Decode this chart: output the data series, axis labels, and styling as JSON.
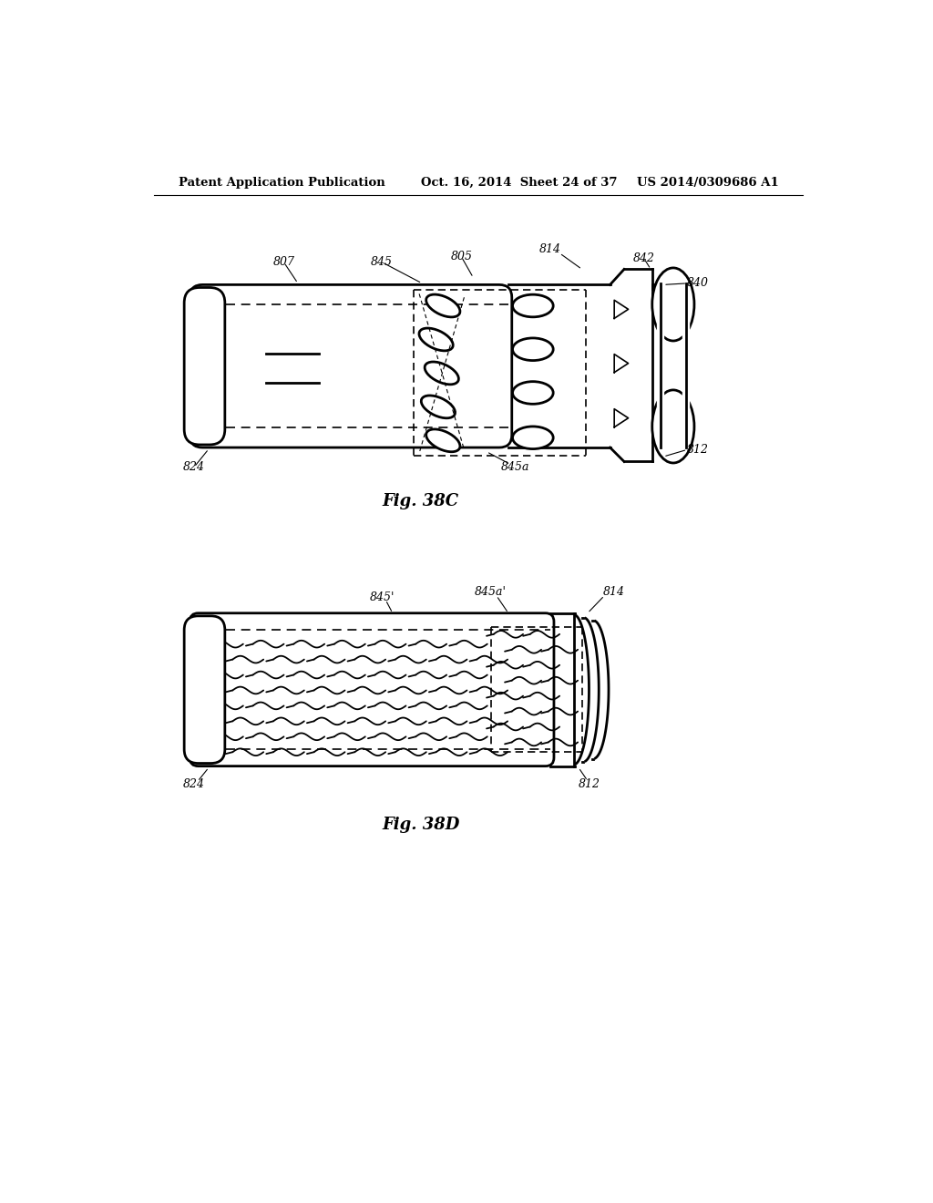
{
  "fig_width": 10.24,
  "fig_height": 13.2,
  "dpi": 100,
  "bg_color": "#ffffff",
  "line_color": "#000000",
  "header_left": "Patent Application Publication",
  "header_center": "Oct. 16, 2014  Sheet 24 of 37",
  "header_right": "US 2014/0309686 A1",
  "fig38c_label": "Fig. 38C",
  "fig38d_label": "Fig. 38D"
}
